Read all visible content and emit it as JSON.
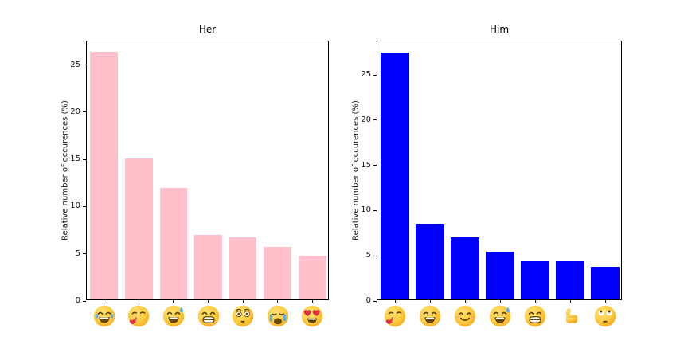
{
  "figure": {
    "background": "#ffffff",
    "text_color": "#111111",
    "axis_color": "#000000"
  },
  "chart_data": [
    {
      "type": "bar",
      "title": "Her",
      "ylabel": "Relative number of occurences (%)",
      "categories": [
        "face-with-tears-of-joy",
        "face-blowing-a-kiss",
        "grinning-face-with-sweat",
        "beaming-face-with-smiling-eyes",
        "flushed-face",
        "loudly-crying-face",
        "smiling-face-with-heart-eyes"
      ],
      "category_emojis": [
        "😂",
        "😘",
        "😅",
        "😁",
        "😳",
        "😭",
        "😍"
      ],
      "values": [
        26.2,
        14.9,
        11.8,
        6.8,
        6.6,
        5.6,
        4.6
      ],
      "bar_color": "#ffc0cb",
      "yticks": [
        0,
        5,
        10,
        15,
        20,
        25
      ],
      "ylim": [
        0,
        27.5
      ],
      "grid": false,
      "legend": false
    },
    {
      "type": "bar",
      "title": "Him",
      "ylabel": "Relative number of occurences (%)",
      "categories": [
        "face-blowing-a-kiss",
        "grinning-face-with-smiling-eyes",
        "smiling-face-with-smiling-eyes",
        "grinning-face-with-sweat",
        "beaming-face-with-smiling-eyes",
        "thumbs-up",
        "face-with-rolling-eyes"
      ],
      "category_emojis": [
        "😘",
        "😄",
        "😊",
        "😅",
        "😁",
        "👍",
        "🙄"
      ],
      "values": [
        27.3,
        8.4,
        6.9,
        5.3,
        4.2,
        4.2,
        3.6
      ],
      "bar_color": "#0000fa",
      "yticks": [
        0,
        5,
        10,
        15,
        20,
        25
      ],
      "ylim": [
        0,
        28.7
      ],
      "grid": false,
      "legend": false
    }
  ]
}
